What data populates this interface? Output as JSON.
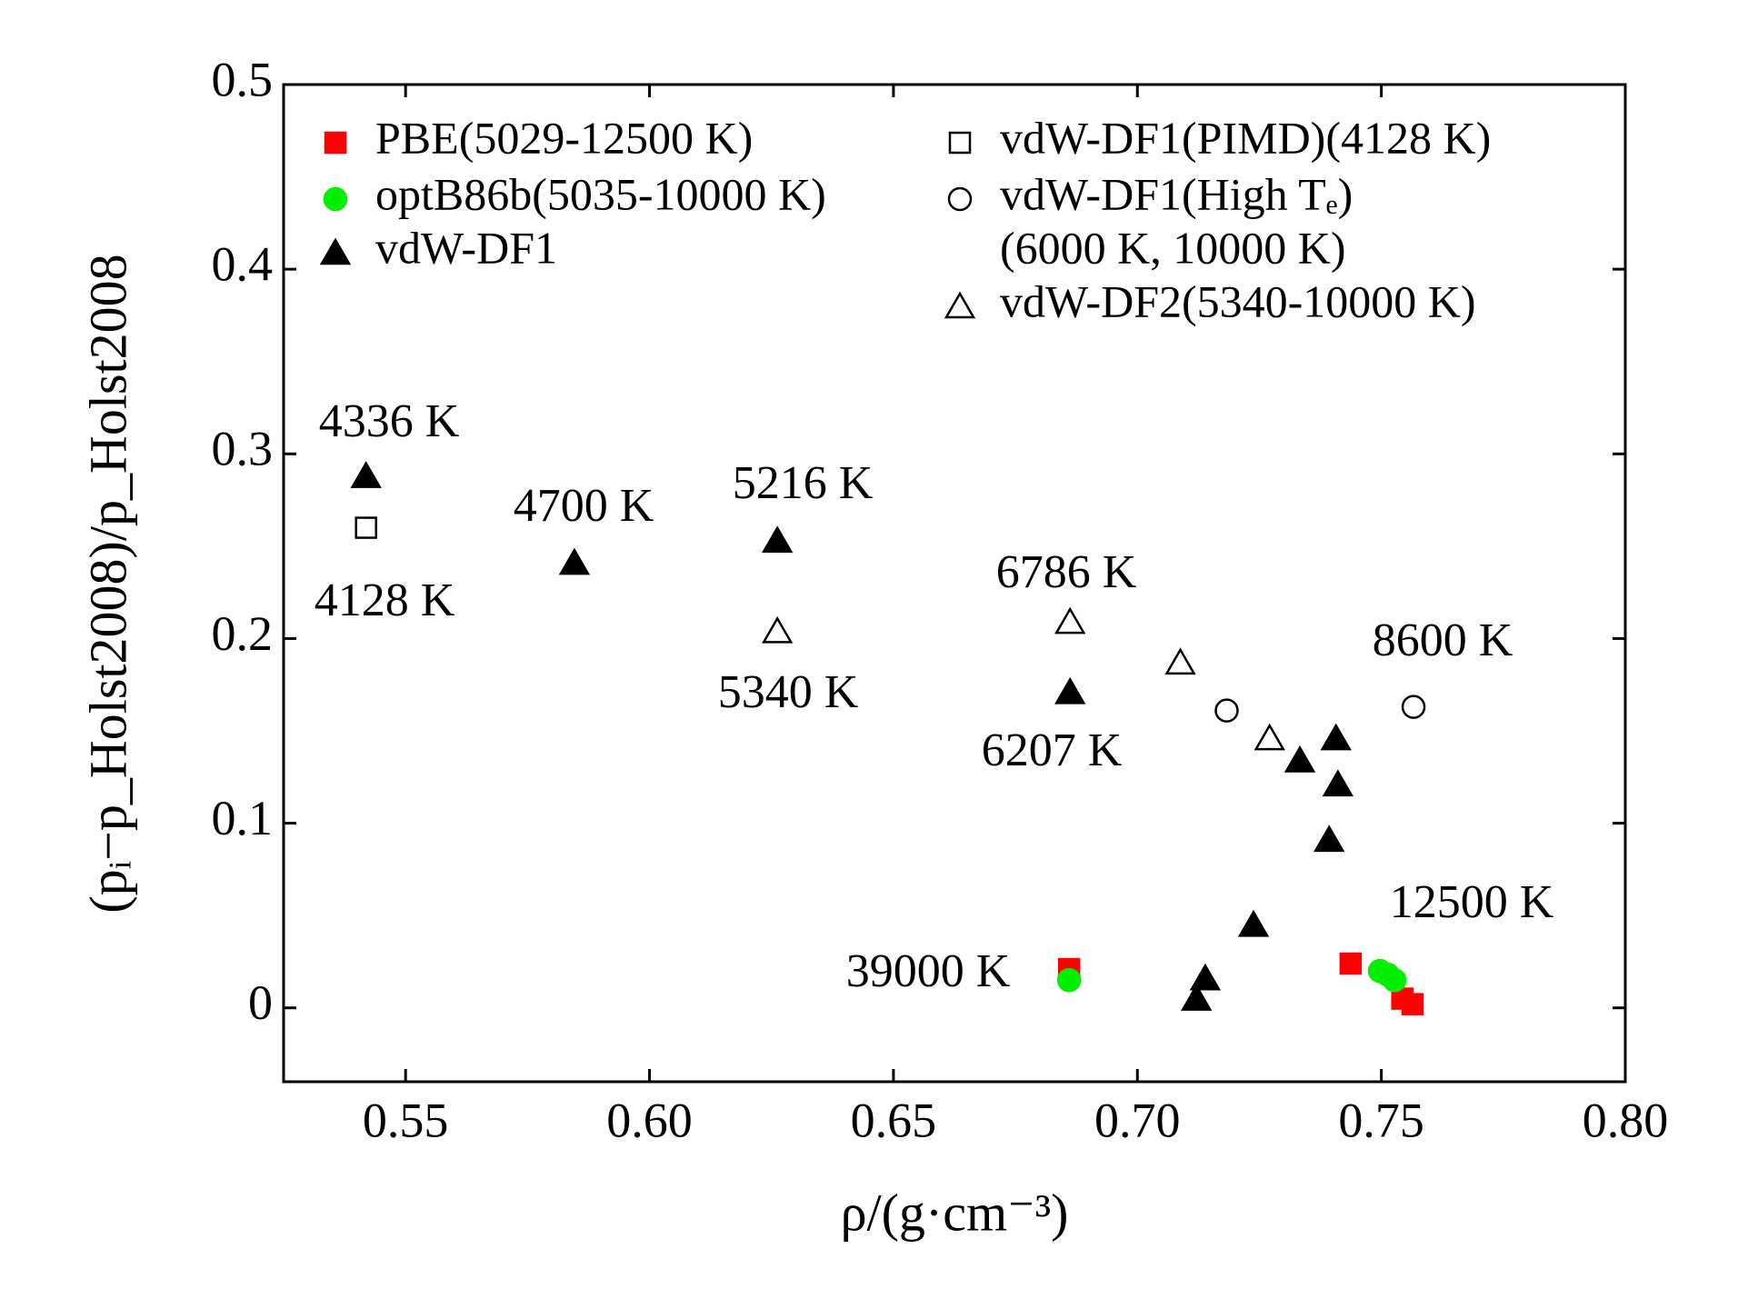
{
  "chart_data": {
    "type": "scatter",
    "x_label": "ρ/(g·cm⁻³)",
    "y_label": "(pᵢ−p_Holst2008)/p_Holst2008",
    "xlim": [
      0.525,
      0.8
    ],
    "ylim": [
      -0.04,
      0.5
    ],
    "xticks": [
      0.55,
      {
        "value": 0.6,
        "label": "0.60"
      },
      0.65,
      {
        "value": 0.7,
        "label": "0.70"
      },
      0.75,
      {
        "value": 0.8,
        "label": "0.80"
      }
    ],
    "yticks": [
      0,
      0.1,
      0.2,
      0.3,
      0.4,
      0.5
    ],
    "series": [
      {
        "name": "PBE(5029-12500 K)",
        "marker": "square",
        "filled": true,
        "color": "#ff0000",
        "x": [
          0.686,
          0.7437,
          0.7543,
          0.7564
        ],
        "values": [
          0.021,
          0.024,
          0.005,
          0.002
        ]
      },
      {
        "name": "optB86b(5035-10000 K)",
        "marker": "circle",
        "filled": true,
        "color": "#00ee00",
        "x": [
          0.686,
          0.7497,
          0.7513,
          0.7527
        ],
        "values": [
          0.015,
          0.02,
          0.018,
          0.015
        ]
      },
      {
        "name": "vdW-DF1",
        "marker": "triangle",
        "filled": true,
        "color": "#000000",
        "x": [
          0.5419,
          0.5846,
          0.6262,
          0.6862,
          0.7333,
          0.7407,
          0.7411,
          0.7393,
          0.7238,
          0.7139,
          0.7121
        ],
        "values": [
          0.288,
          0.241,
          0.253,
          0.171,
          0.134,
          0.146,
          0.121,
          0.091,
          0.045,
          0.016,
          0.005
        ]
      },
      {
        "name": "vdW-DF1(PIMD)(4128 K)",
        "marker": "square",
        "filled": false,
        "color": "#000000",
        "x": [
          0.5419
        ],
        "values": [
          0.26
        ]
      },
      {
        "name": "vdW-DF1(High Tₑ)",
        "legend_subline": "(6000 K, 10000 K)",
        "marker": "circle",
        "filled": false,
        "color": "#000000",
        "x": [
          0.7183,
          0.7566
        ],
        "values": [
          0.161,
          0.163
        ]
      },
      {
        "name": "vdW-DF2(5340-10000 K)",
        "marker": "triangle",
        "filled": false,
        "color": "#000000",
        "x": [
          0.6262,
          0.6862,
          0.7088,
          0.7271
        ],
        "values": [
          0.204,
          0.209,
          0.187,
          0.146
        ]
      }
    ],
    "annotations": [
      "4336 K",
      "4128 K",
      "4700 K",
      "5216 K",
      "5340 K",
      "6786 K",
      "6207 K",
      "8600 K",
      "12500 K",
      "39000 K"
    ]
  }
}
